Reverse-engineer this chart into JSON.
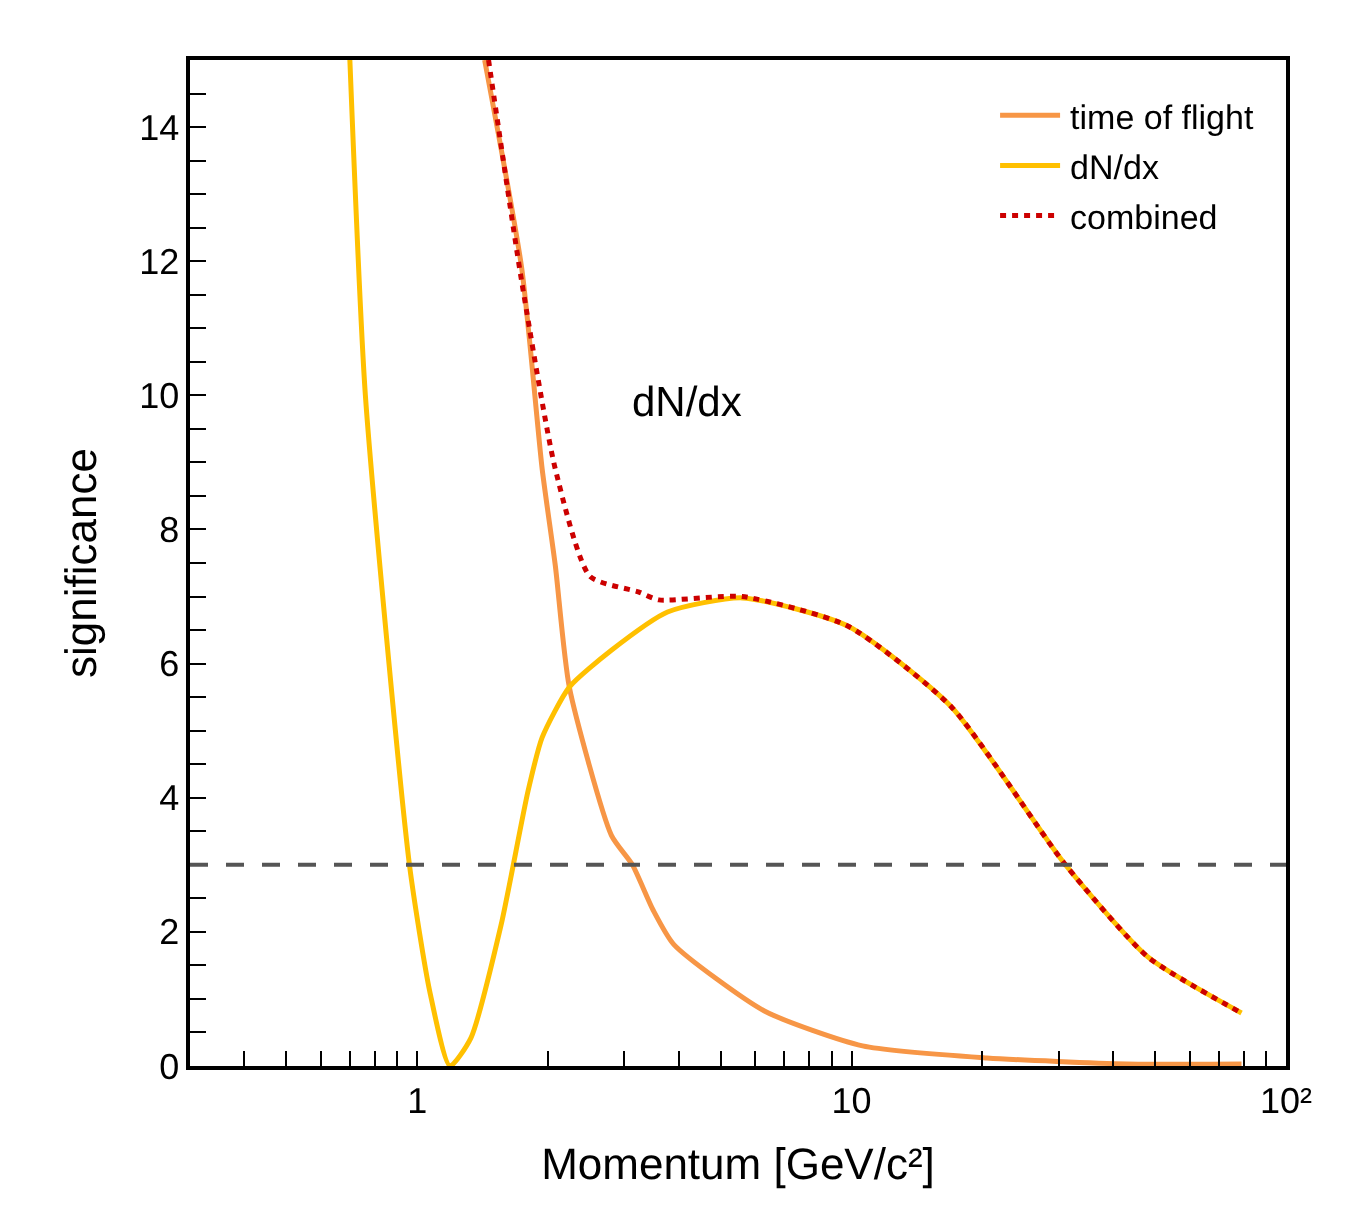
{
  "chart_data": {
    "type": "line",
    "xlabel": "Momentum [GeV/c²]",
    "ylabel": "significance",
    "log": "x",
    "xlim": [
      0.3,
      100
    ],
    "ylim": [
      0,
      15
    ],
    "xticks": [
      {
        "value": 0.3,
        "label": null
      },
      {
        "value": 0.4,
        "label": null
      },
      {
        "value": 0.5,
        "label": null
      },
      {
        "value": 0.6,
        "label": null
      },
      {
        "value": 0.7,
        "label": null
      },
      {
        "value": 0.8,
        "label": null
      },
      {
        "value": 0.9,
        "label": null
      },
      1,
      {
        "value": 2,
        "label": null
      },
      {
        "value": 3,
        "label": null
      },
      {
        "value": 4,
        "label": null
      },
      {
        "value": 5,
        "label": null
      },
      {
        "value": 6,
        "label": null
      },
      {
        "value": 7,
        "label": null
      },
      {
        "value": 8,
        "label": null
      },
      {
        "value": 9,
        "label": null
      },
      10,
      {
        "value": 20,
        "label": null
      },
      {
        "value": 30,
        "label": null
      },
      {
        "value": 40,
        "label": null
      },
      {
        "value": 50,
        "label": null
      },
      {
        "value": 60,
        "label": null
      },
      {
        "value": 70,
        "label": null
      },
      {
        "value": 80,
        "label": null
      },
      {
        "value": 90,
        "label": null
      },
      {
        "value": 100,
        "label": "10²"
      }
    ],
    "yticks": [
      0,
      {
        "value": 0.5,
        "label": null
      },
      {
        "value": 1,
        "label": null
      },
      {
        "value": 1.5,
        "label": null
      },
      2,
      {
        "value": 2.5,
        "label": null
      },
      {
        "value": 3,
        "label": null
      },
      {
        "value": 3.5,
        "label": null
      },
      4,
      {
        "value": 4.5,
        "label": null
      },
      {
        "value": 5,
        "label": null
      },
      {
        "value": 5.5,
        "label": null
      },
      6,
      {
        "value": 6.5,
        "label": null
      },
      {
        "value": 7,
        "label": null
      },
      {
        "value": 7.5,
        "label": null
      },
      8,
      {
        "value": 8.5,
        "label": null
      },
      {
        "value": 9,
        "label": null
      },
      {
        "value": 9.5,
        "label": null
      },
      10,
      {
        "value": 10.5,
        "label": null
      },
      {
        "value": 11,
        "label": null
      },
      {
        "value": 11.5,
        "label": null
      },
      12,
      {
        "value": 12.5,
        "label": null
      },
      {
        "value": 13,
        "label": null
      },
      {
        "value": 13.5,
        "label": null
      },
      14,
      {
        "value": 14.5,
        "label": null
      }
    ],
    "grid": false,
    "legend": "top right",
    "marker": "none",
    "series": [
      {
        "name": "time of flight",
        "color": "#f79646",
        "line_style": "solid",
        "x": [
          1.43,
          1.74,
          1.94,
          2.08,
          2.24,
          2.8,
          3.13,
          3.49,
          3.9,
          6.3,
          10.6,
          20.5,
          43,
          79
        ],
        "values": [
          15,
          11.9,
          8.9,
          7.46,
          5.65,
          3.44,
          3.0,
          2.33,
          1.81,
          0.82,
          0.3,
          0.12,
          0.03,
          0.03
        ]
      },
      {
        "name": "dN/dx",
        "color": "#ffc000",
        "line_style": "solid",
        "x": [
          0.7,
          0.76,
          0.96,
          1.07,
          1.19,
          1.33,
          1.56,
          1.8,
          1.94,
          2.24,
          2.8,
          3.77,
          5.6,
          9.8,
          17,
          30.9,
          48,
          79
        ],
        "values": [
          15,
          10,
          3,
          1.1,
          0,
          0.42,
          2.1,
          4.1,
          4.9,
          5.65,
          6.2,
          6.77,
          6.98,
          6.56,
          5.35,
          3.02,
          1.63,
          0.79
        ]
      },
      {
        "name": "combined",
        "color": "#cc0000",
        "line_style": "dotted",
        "x": [
          1.46,
          1.74,
          2.08,
          2.5,
          3.23,
          3.6,
          5.6,
          9.8,
          17,
          30.9,
          48,
          79
        ],
        "values": [
          15,
          11.7,
          8.9,
          7.3,
          7.07,
          6.95,
          7.0,
          6.56,
          5.35,
          3.02,
          1.63,
          0.79
        ]
      }
    ],
    "ref_lines": [
      {
        "axis": "y",
        "value": 3,
        "color": "#555555",
        "line_style": "dashed"
      }
    ],
    "annotations": [
      "dN/dx"
    ]
  }
}
